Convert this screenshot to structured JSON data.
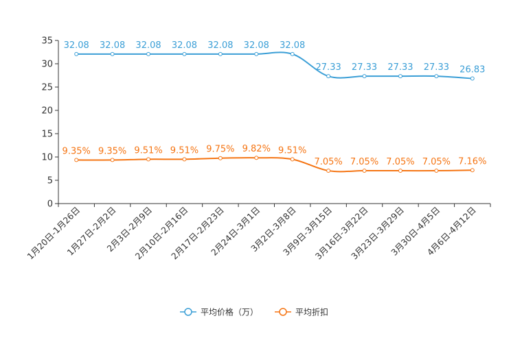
{
  "chart_data": {
    "type": "line",
    "title": "",
    "xlabel": "",
    "ylabel": "",
    "ylim": [
      0,
      35
    ],
    "yticks": [
      0,
      5,
      10,
      15,
      20,
      25,
      30,
      35
    ],
    "categories": [
      "1月20日-1月26日",
      "1月27日-2月2日",
      "2月3日-2月9日",
      "2月10日-2月16日",
      "2月17日-2月23日",
      "2月24日-3月1日",
      "3月2日-3月8日",
      "3月9日-3月15日",
      "3月16日-3月22日",
      "3月23日-3月29日",
      "3月30日-4月5日",
      "4月6日-4月12日"
    ],
    "series": [
      {
        "name": "平均价格（万）",
        "color": "#3a9ed6",
        "values": [
          32.08,
          32.08,
          32.08,
          32.08,
          32.08,
          32.08,
          32.08,
          27.33,
          27.33,
          27.33,
          27.33,
          26.83
        ],
        "labels": [
          "32.08",
          "32.08",
          "32.08",
          "32.08",
          "32.08",
          "32.08",
          "32.08",
          "27.33",
          "27.33",
          "27.33",
          "27.33",
          "26.83"
        ]
      },
      {
        "name": "平均折扣",
        "color": "#f57412",
        "values": [
          9.35,
          9.35,
          9.51,
          9.51,
          9.75,
          9.82,
          9.51,
          7.05,
          7.05,
          7.05,
          7.05,
          7.16
        ],
        "labels": [
          "9.35%",
          "9.35%",
          "9.51%",
          "9.51%",
          "9.75%",
          "9.82%",
          "9.51%",
          "7.05%",
          "7.05%",
          "7.05%",
          "7.05%",
          "7.16%"
        ]
      }
    ],
    "legend": "bottom-center"
  }
}
